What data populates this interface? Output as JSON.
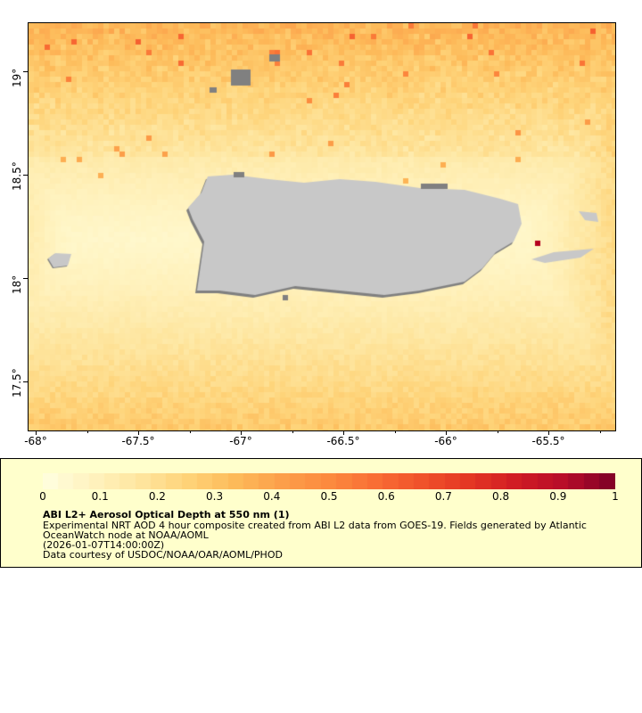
{
  "map": {
    "variable": "aod_550nm",
    "x_ticks": [
      "-68°",
      "-67.5°",
      "-67°",
      "-66.5°",
      "-66°",
      "-65.5°"
    ],
    "y_ticks": [
      "19°",
      "18.5°",
      "18°",
      "17.5°"
    ],
    "lon_range": [
      -68.04,
      -65.2
    ],
    "lat_range": [
      17.26,
      19.24
    ],
    "land_color": "#c8c8c8",
    "nodata_color": "#808080"
  },
  "legend": {
    "ticks": [
      "0",
      "0.1",
      "0.2",
      "0.3",
      "0.4",
      "0.5",
      "0.6",
      "0.7",
      "0.8",
      "0.9",
      "1"
    ],
    "range": [
      0,
      1
    ],
    "palette": [
      "#ffffe0",
      "#fff3c0",
      "#fee6a0",
      "#fed47a",
      "#fdbb5a",
      "#fca04a",
      "#fc8a3e",
      "#f96d34",
      "#f0502a",
      "#e33524",
      "#cf1a24",
      "#b50c2a",
      "#7d0026"
    ],
    "title": "ABI L2+ Aerosol Optical Depth at 550 nm (1)",
    "line1": "Experimental NRT AOD 4 hour composite created from ABI L2 data from GOES-19. Fields generated by Atlantic",
    "line2": "OceanWatch node at NOAA/AOML",
    "line3": "(2026-01-07T14:00:00Z)",
    "line4": "Data courtesy of USDOC/NOAA/OAR/AOML/PHOD"
  }
}
